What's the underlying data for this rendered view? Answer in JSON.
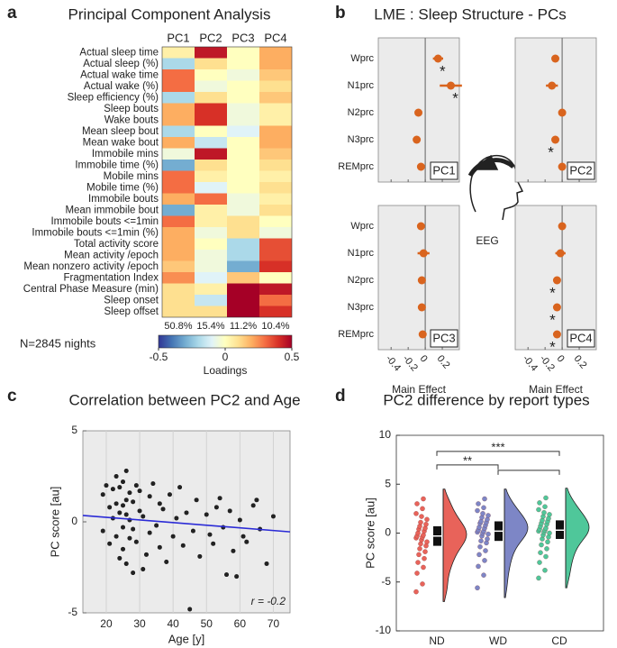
{
  "panel_labels": [
    "a",
    "b",
    "c",
    "d"
  ],
  "chart_data": [
    {
      "type": "heatmap",
      "title": "Principal Component Analysis",
      "columns": [
        "PC1",
        "PC2",
        "PC3",
        "PC4"
      ],
      "rows": [
        "Actual sleep time",
        "Actual sleep (%)",
        "Actual wake time",
        "Actual wake (%)",
        "Sleep efficiency (%)",
        "Sleep bouts",
        "Wake bouts",
        "Mean sleep bout",
        "Mean wake bout",
        "Immobile mins",
        "Immobile time (%)",
        "Mobile mins",
        "Mobile time (%)",
        "Immobile bouts",
        "Mean immobile bout",
        "Immobile bouts <=1min",
        "Immobile bouts <=1min (%)",
        "Total activity score",
        "Mean activity /epoch",
        "Mean nonzero activity /epoch",
        "Fragmentation Index",
        "Central Phase Measure (min)",
        "Sleep onset",
        "Sleep offset"
      ],
      "values": [
        [
          0.05,
          0.45,
          0,
          0.2
        ],
        [
          -0.2,
          0.1,
          0,
          0.2
        ],
        [
          0.3,
          0,
          -0.05,
          0.15
        ],
        [
          0.3,
          -0.05,
          0,
          0.1
        ],
        [
          -0.2,
          0.1,
          0,
          0.15
        ],
        [
          0.2,
          0.4,
          -0.05,
          0.05
        ],
        [
          0.2,
          0.4,
          -0.05,
          0.05
        ],
        [
          -0.2,
          0,
          -0.1,
          0.2
        ],
        [
          0.2,
          -0.15,
          0,
          0.2
        ],
        [
          -0.05,
          0.45,
          0,
          0.15
        ],
        [
          -0.3,
          0.1,
          0,
          0.1
        ],
        [
          0.3,
          0.05,
          0,
          0.05
        ],
        [
          0.3,
          -0.1,
          0,
          0.1
        ],
        [
          0.2,
          0.3,
          -0.05,
          0.05
        ],
        [
          -0.3,
          0.05,
          -0.05,
          0.1
        ],
        [
          0.3,
          0.05,
          0.1,
          0
        ],
        [
          0.2,
          -0.05,
          0.1,
          -0.05
        ],
        [
          0.2,
          0,
          -0.2,
          0.35
        ],
        [
          0.2,
          -0.05,
          -0.2,
          0.35
        ],
        [
          0.15,
          -0.05,
          -0.3,
          0.4
        ],
        [
          0.25,
          -0.1,
          0.15,
          0
        ],
        [
          0.1,
          0.05,
          0.5,
          0.45
        ],
        [
          0.1,
          -0.15,
          0.5,
          0.3
        ],
        [
          0.1,
          0.1,
          0.5,
          0.4
        ]
      ],
      "explained": {
        "values": [
          50.8,
          15.4,
          11.2,
          10.4
        ],
        "value_labels": [
          "50.8%",
          "15.4%",
          "11.2%",
          "10.4%"
        ]
      },
      "note": "N=2845 nights",
      "clim": [
        -0.5,
        0.5
      ],
      "cticks": [
        -0.5,
        0,
        0.5
      ],
      "colorbar_label": "Loadings"
    },
    {
      "type": "dotplot",
      "title": "LME : Sleep Structure - PCs",
      "categories": [
        "Wprc",
        "N1prc",
        "N2prc",
        "N3prc",
        "REMprc"
      ],
      "panels": [
        {
          "name": "PC1",
          "values": [
            0.15,
            0.3,
            -0.08,
            -0.1,
            -0.05
          ],
          "errors": [
            0.06,
            0.13,
            0.02,
            0.02,
            0.02
          ],
          "stars": [
            "*",
            "*",
            null,
            null,
            null
          ]
        },
        {
          "name": "PC2",
          "values": [
            -0.08,
            -0.12,
            0.0,
            -0.08,
            0.0
          ],
          "errors": [
            0.04,
            0.07,
            0.01,
            0.02,
            0.01
          ],
          "stars": [
            null,
            null,
            null,
            "*",
            null
          ]
        },
        {
          "name": "PC3",
          "values": [
            -0.05,
            -0.02,
            -0.04,
            -0.04,
            -0.03
          ],
          "errors": [
            0.02,
            0.07,
            0.01,
            0.01,
            0.01
          ],
          "stars": [
            null,
            null,
            null,
            null,
            null
          ]
        },
        {
          "name": "PC4",
          "values": [
            0.0,
            -0.02,
            -0.06,
            -0.06,
            -0.06
          ],
          "errors": [
            0.01,
            0.06,
            0.01,
            0.01,
            0.01
          ],
          "stars": [
            null,
            null,
            "*",
            "*",
            "*"
          ]
        }
      ],
      "xlim": [
        -0.55,
        0.4
      ],
      "xticks": [
        -0.4,
        -0.2,
        0,
        0.2
      ],
      "xlabel": "Main Effect",
      "color": "#d9641e",
      "inset_label": "EEG"
    },
    {
      "type": "scatter",
      "title": "Correlation between PC2 and Age",
      "x": [
        19,
        19,
        20,
        21,
        21,
        22,
        22,
        23,
        23,
        23,
        24,
        24,
        24,
        25,
        25,
        25,
        25,
        26,
        26,
        26,
        26,
        27,
        27,
        27,
        28,
        28,
        28,
        29,
        29,
        30,
        30,
        31,
        31,
        32,
        33,
        33,
        34,
        35,
        36,
        36,
        37,
        38,
        39,
        40,
        41,
        42,
        43,
        44,
        45,
        46,
        47,
        48,
        50,
        51,
        52,
        53,
        54,
        55,
        56,
        57,
        58,
        59,
        60,
        61,
        62,
        64,
        65,
        66,
        68,
        70
      ],
      "y": [
        1.5,
        -0.5,
        2.0,
        0.8,
        -1.2,
        1.8,
        0.2,
        2.5,
        -0.8,
        1.0,
        0.5,
        -2.0,
        1.9,
        2.2,
        -0.3,
        0.9,
        -1.5,
        1.2,
        -2.3,
        0.4,
        2.8,
        -0.9,
        1.6,
        0.1,
        -2.8,
        1.1,
        -0.4,
        2.0,
        -1.1,
        0.6,
        1.7,
        -2.6,
        0.3,
        -1.8,
        1.4,
        -0.6,
        2.1,
        -0.2,
        -1.4,
        1.0,
        0.7,
        -2.2,
        1.5,
        -0.8,
        0.2,
        1.9,
        -1.3,
        0.5,
        -4.8,
        -0.5,
        1.2,
        -1.9,
        0.4,
        -0.7,
        -1.2,
        0.8,
        1.3,
        -0.3,
        -2.9,
        0.6,
        -1.6,
        -3.0,
        0.1,
        -0.8,
        -1.1,
        0.9,
        1.2,
        -0.4,
        -2.3,
        0.3
      ],
      "fit": {
        "x": [
          13,
          75
        ],
        "y": [
          0.35,
          -0.55
        ],
        "color": "#2b2bd6"
      },
      "xlim": [
        13,
        75
      ],
      "ylim": [
        -5,
        5
      ],
      "xticks": [
        20,
        30,
        40,
        50,
        60,
        70
      ],
      "yticks": [
        -5,
        0,
        5
      ],
      "xlabel": "Age [y]",
      "ylabel": "PC score [au]",
      "annotation": "r = -0.2",
      "color": "#222222",
      "grid": true
    },
    {
      "type": "raincloud",
      "title": "PC2 difference by report types",
      "categories": [
        "ND",
        "WD",
        "CD"
      ],
      "groups": [
        {
          "color": "#e8635a",
          "values": [
            -6.0,
            -5.2,
            -4.1,
            -3.5,
            -3.0,
            -2.6,
            -2.2,
            -1.9,
            -1.6,
            -1.3,
            -1.1,
            -0.9,
            -0.7,
            -0.5,
            -0.4,
            -0.3,
            -0.2,
            0.0,
            0.2,
            0.4,
            0.5,
            0.7,
            0.9,
            1.1,
            1.4,
            1.7,
            2.0,
            2.5,
            3.0,
            3.5
          ],
          "q1": -1.3,
          "median": -0.3,
          "q3": 0.7
        },
        {
          "color": "#7d86c6",
          "values": [
            -5.6,
            -4.3,
            -3.4,
            -2.8,
            -2.2,
            -1.8,
            -1.4,
            -1.0,
            -0.8,
            -0.6,
            -0.3,
            -0.1,
            0.0,
            0.1,
            0.2,
            0.3,
            0.5,
            0.6,
            0.8,
            1.0,
            1.1,
            1.2,
            1.4,
            1.6,
            1.8,
            2.0,
            2.3,
            2.6,
            3.0,
            3.5
          ],
          "q1": -0.8,
          "median": 0.2,
          "q3": 1.2
        },
        {
          "color": "#4fc79a",
          "values": [
            -4.6,
            -3.8,
            -3.0,
            -2.4,
            -2.0,
            -1.6,
            -1.2,
            -0.9,
            -0.6,
            -0.4,
            -0.2,
            0.0,
            0.1,
            0.2,
            0.3,
            0.4,
            0.5,
            0.7,
            0.9,
            1.0,
            1.2,
            1.3,
            1.5,
            1.7,
            1.9,
            2.1,
            2.4,
            2.7,
            3.1,
            3.6
          ],
          "q1": -0.6,
          "median": 0.3,
          "q3": 1.3
        }
      ],
      "brackets": [
        {
          "between": [
            "ND",
            "CD"
          ],
          "y": 8.35,
          "label": "***"
        },
        {
          "between": [
            "ND",
            "WD"
          ],
          "y": 6.97,
          "label": "**"
        },
        {
          "between": [
            "WD",
            "CD"
          ],
          "y": 6.42,
          "label": null
        }
      ],
      "ylim": [
        -10,
        10
      ],
      "yticks": [
        -10,
        -5,
        0,
        5,
        10
      ],
      "ylabel": "PC score [au]"
    }
  ]
}
